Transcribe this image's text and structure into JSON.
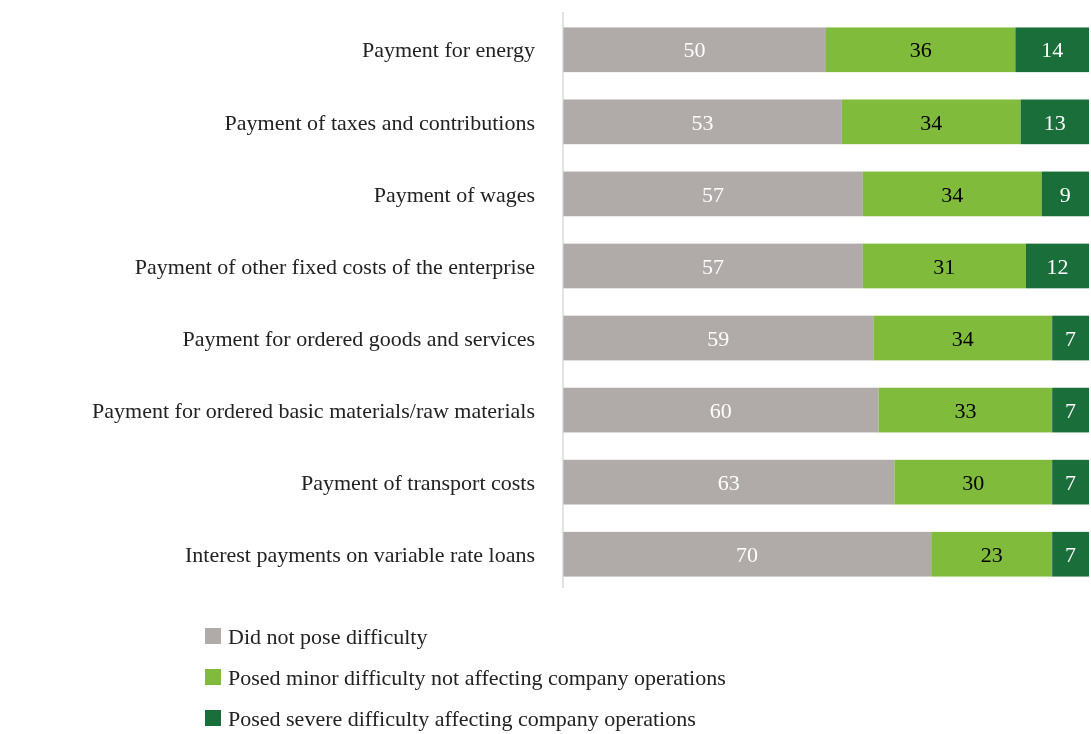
{
  "chart_data": {
    "type": "bar",
    "orientation": "horizontal",
    "stacked": true,
    "data_labels": true,
    "legend": "bottom",
    "tick_labels": "y",
    "xlim": [
      0,
      100
    ],
    "categories": [
      "Payment for energy",
      "Payment of taxes and contributions",
      "Payment of wages",
      "Payment of other fixed costs of the enterprise",
      "Payment for ordered goods and services",
      "Payment for ordered basic materials/raw materials",
      "Payment of transport costs",
      "Interest payments on variable rate loans"
    ],
    "series": [
      {
        "name": "Did not pose difficulty",
        "color": "#b0aaa9",
        "values": [
          50,
          53,
          57,
          57,
          59,
          60,
          63,
          70
        ]
      },
      {
        "name": "Posed minor difficulty not affecting company operations",
        "color": "#80bb3c",
        "values": [
          36,
          34,
          34,
          31,
          34,
          33,
          30,
          23
        ]
      },
      {
        "name": "Posed severe difficulty affecting company operations",
        "color": "#1a6e3a",
        "values": [
          14,
          13,
          9,
          12,
          7,
          7,
          7,
          7
        ]
      }
    ]
  }
}
